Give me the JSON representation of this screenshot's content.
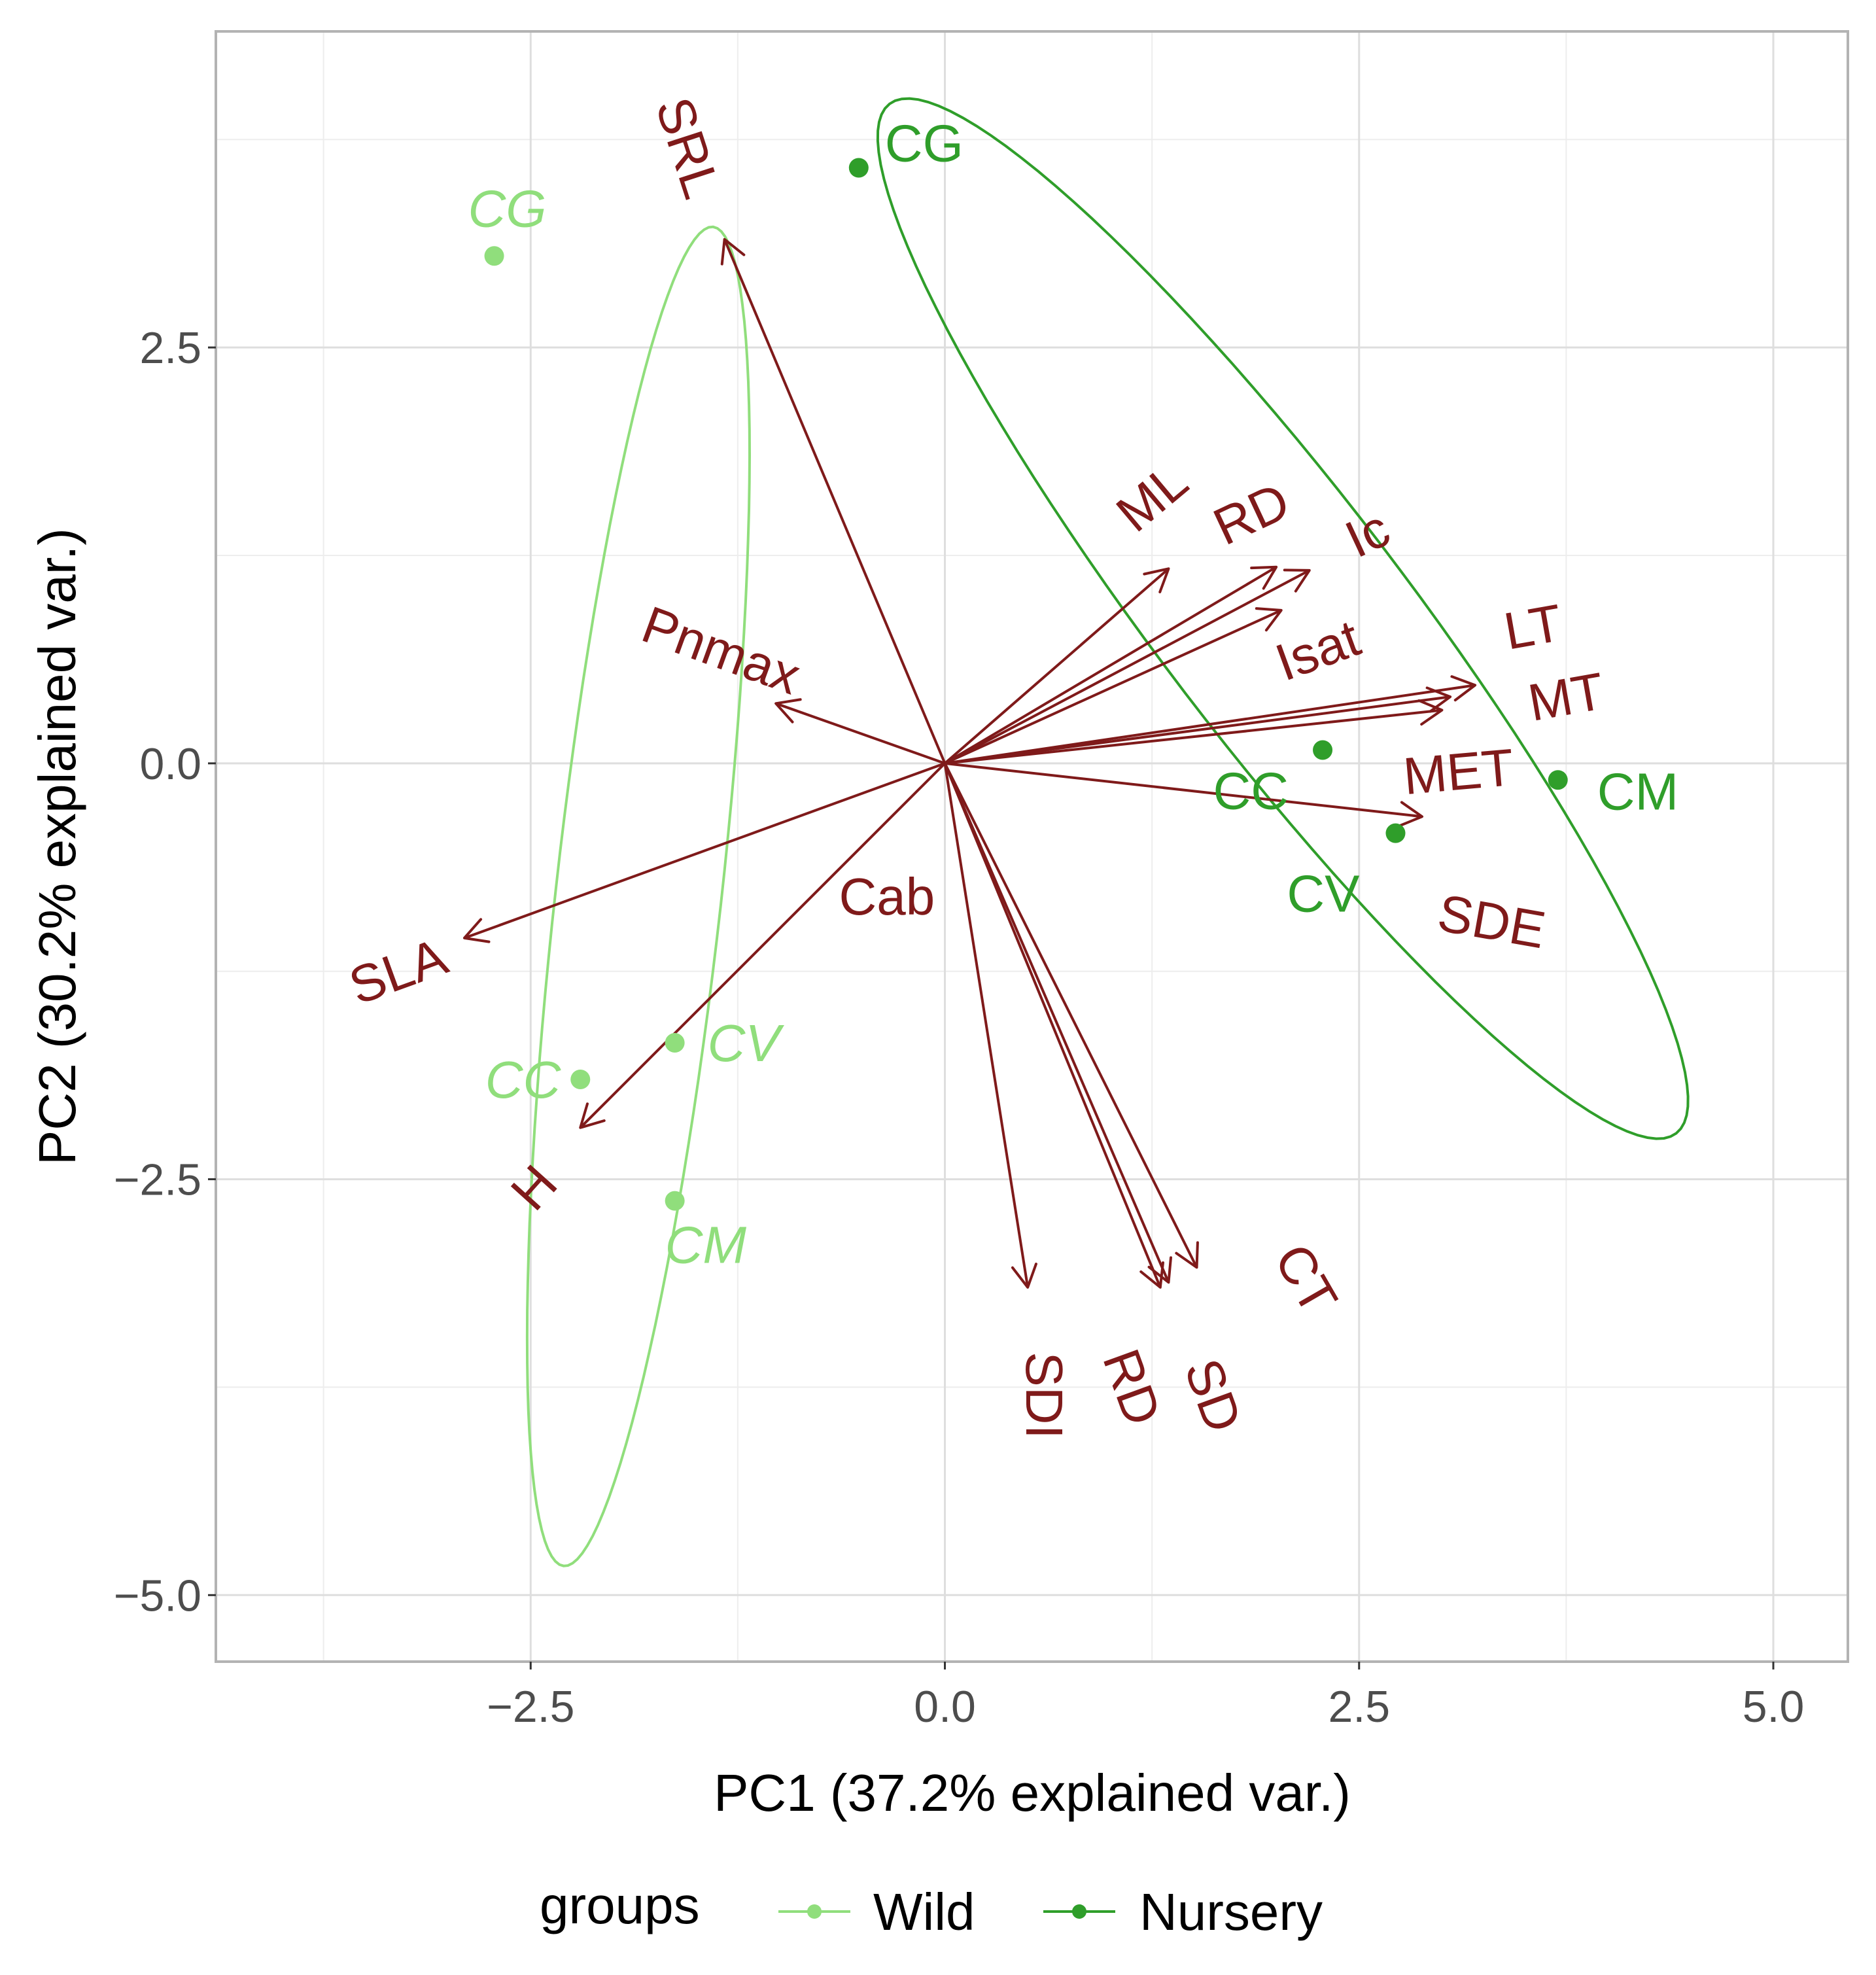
{
  "chart_data": {
    "type": "scatter",
    "subtype": "pca-biplot",
    "title": "",
    "xlabel": "PC1 (37.2% explained var.)",
    "ylabel": "PC2 (30.2% explained var.)",
    "xlim": [
      -4.4,
      5.45
    ],
    "ylim": [
      -5.4,
      4.4
    ],
    "x_ticks": [
      {
        "value": -2.5,
        "label": "−2.5"
      },
      {
        "value": 0.0,
        "label": "0.0"
      },
      {
        "value": 2.5,
        "label": "2.5"
      },
      {
        "value": 5.0,
        "label": "5.0"
      }
    ],
    "y_ticks": [
      {
        "value": 2.5,
        "label": "2.5"
      },
      {
        "value": 0.0,
        "label": "0.0"
      },
      {
        "value": -2.5,
        "label": "−2.5"
      },
      {
        "value": -5.0,
        "label": "−5.0"
      }
    ],
    "grid": true,
    "legend": {
      "title": "groups",
      "position": "bottom",
      "entries": [
        {
          "name": "Wild",
          "color": "#90de7c"
        },
        {
          "name": "Nursery",
          "color": "#2f9e2a"
        }
      ]
    },
    "series": [
      {
        "name": "Wild",
        "color": "#90de7c",
        "points": [
          {
            "label": "CG",
            "x": -2.72,
            "y": 3.05
          },
          {
            "label": "CC",
            "x": -2.2,
            "y": -1.9
          },
          {
            "label": "CV",
            "x": -1.63,
            "y": -1.68
          },
          {
            "label": "CM",
            "x": -1.63,
            "y": -2.63
          }
        ],
        "ellipse": {
          "cx": -1.85,
          "cy": -0.8,
          "rx": 4.05,
          "ry": 0.5,
          "angle_deg": 83.6
        }
      },
      {
        "name": "Nursery",
        "color": "#2f9e2a",
        "points": [
          {
            "label": "CG",
            "x": -0.52,
            "y": 3.58
          },
          {
            "label": "CC",
            "x": 2.28,
            "y": 0.08
          },
          {
            "label": "CV",
            "x": 2.72,
            "y": -0.42
          },
          {
            "label": "CM",
            "x": 3.7,
            "y": -0.1
          }
        ],
        "ellipse": {
          "cx": 2.04,
          "cy": 0.87,
          "rx": 3.9,
          "ry": 0.74,
          "angle_deg": -52.5
        }
      }
    ],
    "loadings": {
      "color": "#7f1a1a",
      "origin": [
        0,
        0
      ],
      "vectors": [
        {
          "name": "SRL",
          "x": -1.33,
          "y": 3.15
        },
        {
          "name": "Pnmax",
          "x": -1.02,
          "y": 0.36
        },
        {
          "name": "SLA",
          "x": -2.9,
          "y": -1.05
        },
        {
          "name": "H",
          "x": -2.2,
          "y": -2.19
        },
        {
          "name": "Cab",
          "x": 0.0,
          "y": 0.0
        },
        {
          "name": "ML",
          "x": 1.35,
          "y": 1.17
        },
        {
          "name": "RD",
          "x": 2.0,
          "y": 1.18
        },
        {
          "name": "Ic",
          "x": 2.2,
          "y": 1.16
        },
        {
          "name": "Isat",
          "x": 2.03,
          "y": 0.92
        },
        {
          "name": "LT",
          "x": 3.2,
          "y": 0.47
        },
        {
          "name": "MT",
          "x": 3.05,
          "y": 0.4
        },
        {
          "name": "MET",
          "x": 3.0,
          "y": 0.32
        },
        {
          "name": "SDE",
          "x": 2.88,
          "y": -0.32
        },
        {
          "name": "SDI",
          "x": 0.5,
          "y": -3.15
        },
        {
          "name": "RD",
          "x": 1.3,
          "y": -3.15
        },
        {
          "name": "SD",
          "x": 1.52,
          "y": -3.03
        },
        {
          "name": "CT",
          "x": 1.35,
          "y": -3.12
        }
      ],
      "labels": [
        {
          "name": "SRL",
          "x": -1.55,
          "y": 3.7,
          "rotate": 72
        },
        {
          "name": "Pnmax",
          "x": -1.35,
          "y": 0.68,
          "rotate": 20
        },
        {
          "name": "SLA",
          "x": -3.3,
          "y": -1.25,
          "rotate": -20
        },
        {
          "name": "H",
          "x": -2.48,
          "y": -2.55,
          "rotate": -48
        },
        {
          "name": "Cab",
          "x": -0.35,
          "y": -0.8,
          "rotate": 0
        },
        {
          "name": "ML",
          "x": 1.25,
          "y": 1.6,
          "rotate": -40
        },
        {
          "name": "RD",
          "x": 1.85,
          "y": 1.5,
          "rotate": -25
        },
        {
          "name": "Ic",
          "x": 2.55,
          "y": 1.38,
          "rotate": -25
        },
        {
          "name": "Isat",
          "x": 2.25,
          "y": 0.68,
          "rotate": -20
        },
        {
          "name": "LT",
          "x": 3.55,
          "y": 0.82,
          "rotate": -10
        },
        {
          "name": "MT",
          "x": 3.75,
          "y": 0.4,
          "rotate": -10
        },
        {
          "name": "MET",
          "x": 3.1,
          "y": -0.05,
          "rotate": -5
        },
        {
          "name": "SDE",
          "x": 3.3,
          "y": -0.95,
          "rotate": 10
        },
        {
          "name": "SDI",
          "x": 0.6,
          "y": -3.8,
          "rotate": 90
        },
        {
          "name": "RD",
          "x": 1.13,
          "y": -3.75,
          "rotate": 70
        },
        {
          "name": "SD",
          "x": 1.62,
          "y": -3.8,
          "rotate": 70
        },
        {
          "name": "CT",
          "x": 2.18,
          "y": -3.1,
          "rotate": 60
        }
      ]
    }
  }
}
